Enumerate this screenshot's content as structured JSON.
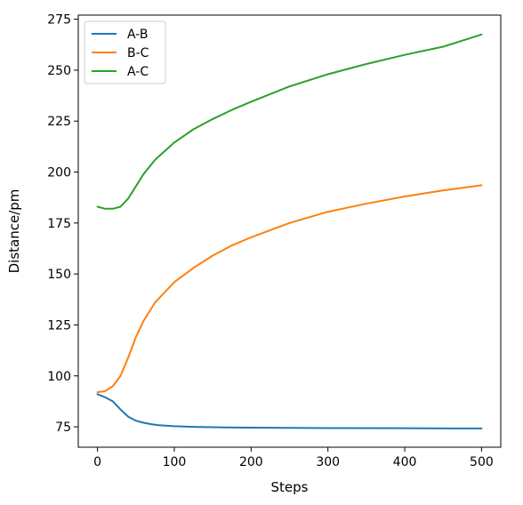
{
  "chart_data": {
    "type": "line",
    "title": "",
    "xlabel": "Steps",
    "ylabel": "Distance/pm",
    "xlim": [
      -25,
      525
    ],
    "ylim": [
      65,
      277
    ],
    "xticks": [
      0,
      100,
      200,
      300,
      400,
      500
    ],
    "yticks": [
      75,
      100,
      125,
      150,
      175,
      200,
      225,
      250,
      275
    ],
    "grid": false,
    "legend_position": "top-left",
    "series": [
      {
        "name": "A-B",
        "color": "#1f77b4",
        "x": [
          0,
          10,
          20,
          30,
          40,
          50,
          60,
          70,
          80,
          100,
          125,
          150,
          200,
          300,
          400,
          500
        ],
        "y": [
          91,
          89.5,
          87.5,
          83.5,
          80,
          78,
          77,
          76.3,
          75.8,
          75.3,
          75,
          74.8,
          74.6,
          74.4,
          74.3,
          74.2
        ]
      },
      {
        "name": "B-C",
        "color": "#ff7f0e",
        "x": [
          0,
          10,
          20,
          30,
          40,
          50,
          60,
          75,
          100,
          125,
          150,
          175,
          200,
          250,
          300,
          350,
          400,
          450,
          500
        ],
        "y": [
          92,
          92.5,
          95,
          100,
          109,
          119,
          127,
          136,
          146,
          153,
          159,
          164,
          168,
          175,
          180.5,
          184.5,
          188,
          191,
          193.5
        ]
      },
      {
        "name": "A-C",
        "color": "#2ca02c",
        "x": [
          0,
          10,
          20,
          30,
          40,
          50,
          60,
          75,
          100,
          125,
          150,
          175,
          200,
          250,
          300,
          350,
          400,
          450,
          500
        ],
        "y": [
          183,
          182,
          182,
          183,
          187,
          193,
          199,
          206,
          214.5,
          221,
          226,
          230.5,
          234.5,
          242,
          248,
          253,
          257.5,
          261.5,
          267.5
        ]
      }
    ]
  }
}
